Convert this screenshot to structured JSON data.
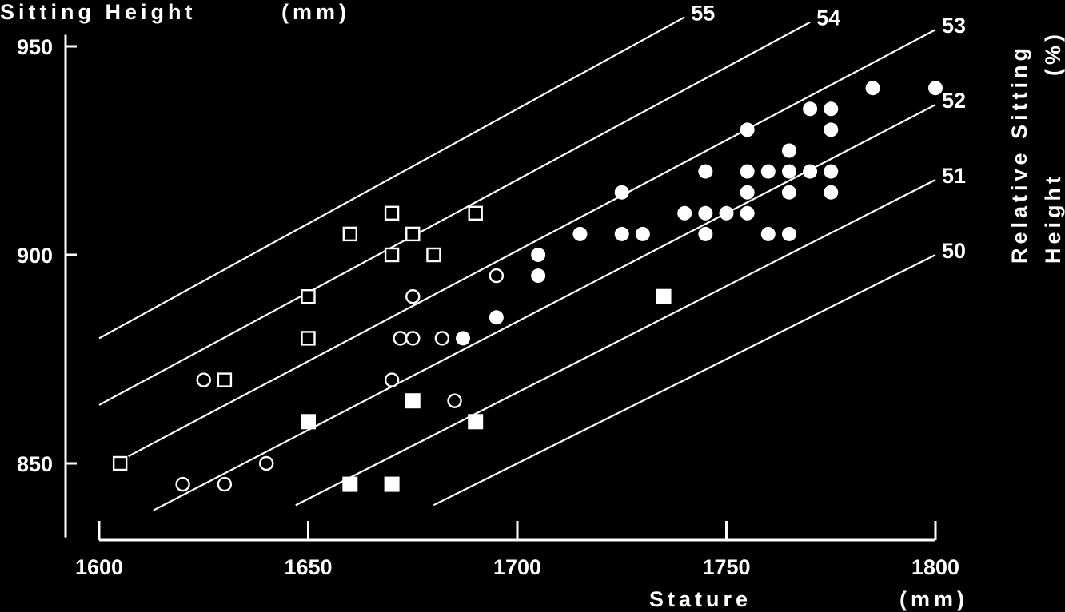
{
  "chart_data": {
    "type": "scatter",
    "title": "",
    "xlabel": "Stature",
    "xunit": "(mm)",
    "ylabel": "Sitting Height",
    "yunit": "(mm)",
    "right_label_line1": "Relative Sitting",
    "right_label_line2": "Height",
    "right_label_unit": "(%)",
    "xlim": [
      1600,
      1800
    ],
    "ylim": [
      838,
      952
    ],
    "xticks": [
      1600,
      1650,
      1700,
      1750,
      1800
    ],
    "yticks": [
      850,
      900,
      950
    ],
    "grid": false,
    "legend": "none",
    "colors": {
      "background": "#000000",
      "foreground": "#ffffff"
    },
    "guide_lines": [
      {
        "label": "55",
        "ratio": 55,
        "x_start": 1600,
        "x_end": 1740
      },
      {
        "label": "54",
        "ratio": 54,
        "x_start": 1600,
        "x_end": 1770
      },
      {
        "label": "53",
        "ratio": 53,
        "x_start": 1607,
        "x_end": 1800
      },
      {
        "label": "52",
        "ratio": 52,
        "x_start": 1613,
        "x_end": 1800
      },
      {
        "label": "51",
        "ratio": 51,
        "x_start": 1647,
        "x_end": 1800
      },
      {
        "label": "50",
        "ratio": 50,
        "x_start": 1680,
        "x_end": 1800
      }
    ],
    "series": [
      {
        "marker": "open-square",
        "points": [
          [
            1605,
            850
          ],
          [
            1630,
            870
          ],
          [
            1650,
            880
          ],
          [
            1650,
            890
          ],
          [
            1660,
            905
          ],
          [
            1670,
            900
          ],
          [
            1670,
            910
          ],
          [
            1675,
            905
          ],
          [
            1680,
            900
          ],
          [
            1690,
            910
          ]
        ]
      },
      {
        "marker": "open-circle",
        "points": [
          [
            1620,
            845
          ],
          [
            1625,
            870
          ],
          [
            1630,
            845
          ],
          [
            1640,
            850
          ],
          [
            1670,
            870
          ],
          [
            1672,
            880
          ],
          [
            1675,
            880
          ],
          [
            1675,
            890
          ],
          [
            1682,
            880
          ],
          [
            1685,
            865
          ],
          [
            1695,
            895
          ]
        ]
      },
      {
        "marker": "filled-square",
        "points": [
          [
            1650,
            860
          ],
          [
            1660,
            845
          ],
          [
            1670,
            845
          ],
          [
            1675,
            865
          ],
          [
            1690,
            860
          ],
          [
            1735,
            890
          ]
        ]
      },
      {
        "marker": "filled-circle",
        "points": [
          [
            1687,
            880
          ],
          [
            1695,
            885
          ],
          [
            1705,
            895
          ],
          [
            1705,
            900
          ],
          [
            1715,
            905
          ],
          [
            1725,
            905
          ],
          [
            1725,
            915
          ],
          [
            1730,
            905
          ],
          [
            1740,
            910
          ],
          [
            1745,
            905
          ],
          [
            1745,
            910
          ],
          [
            1745,
            920
          ],
          [
            1750,
            910
          ],
          [
            1755,
            910
          ],
          [
            1755,
            915
          ],
          [
            1755,
            920
          ],
          [
            1755,
            930
          ],
          [
            1760,
            905
          ],
          [
            1760,
            920
          ],
          [
            1765,
            905
          ],
          [
            1765,
            915
          ],
          [
            1765,
            920
          ],
          [
            1765,
            925
          ],
          [
            1770,
            920
          ],
          [
            1770,
            935
          ],
          [
            1775,
            915
          ],
          [
            1775,
            920
          ],
          [
            1775,
            930
          ],
          [
            1775,
            935
          ],
          [
            1785,
            940
          ],
          [
            1800,
            940
          ]
        ]
      }
    ]
  }
}
